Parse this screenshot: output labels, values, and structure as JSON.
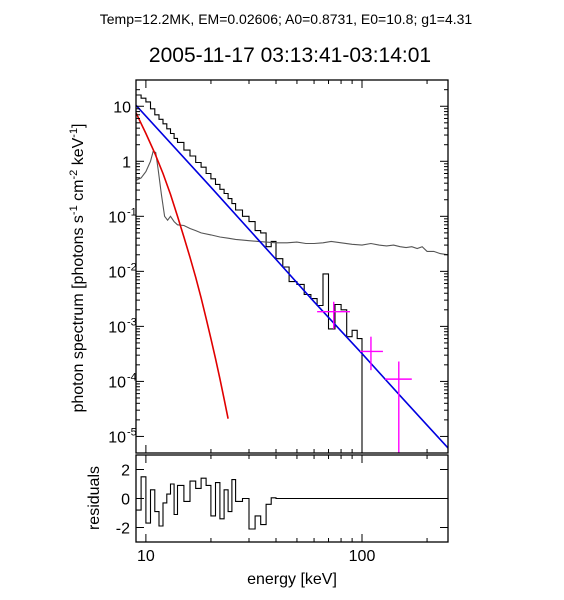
{
  "figure": {
    "header": "Temp=12.2MK, EM=0.02606; A0=0.8731, E0=10.8; g1=4.31",
    "title": "2005-11-17 03:13:41-03:14:01",
    "xlabel": "energy [keV]",
    "ylabel_main": "photon spectrum [photons s",
    "ylabel_sup1": "-1",
    "ylabel_mid1": " cm",
    "ylabel_sup2": "-2",
    "ylabel_mid2": " keV",
    "ylabel_sup3": "-1",
    "ylabel_end": "]",
    "residuals_label": "residuals"
  },
  "colors": {
    "data_histogram": "#000000",
    "background": "#555555",
    "thermal": "#e00000",
    "power_law": "#0000e0",
    "high_energy_points": "#ff00ff"
  },
  "chart_data": [
    {
      "type": "line",
      "title": "2005-11-17 03:13:41-03:14:01",
      "xlabel": "energy [keV]",
      "ylabel": "photon spectrum [photons s-1 cm-2 keV-1]",
      "xscale": "log",
      "yscale": "log",
      "xlim": [
        9,
        250
      ],
      "ylim": [
        5e-06,
        30
      ],
      "x_ticks": [
        10,
        100
      ],
      "y_ticks": [
        {
          "value": 1e-05,
          "base": "10",
          "exp": "-5"
        },
        {
          "value": 0.0001,
          "base": "10",
          "exp": "-4"
        },
        {
          "value": 0.001,
          "base": "10",
          "exp": "-3"
        },
        {
          "value": 0.01,
          "base": "10",
          "exp": "-2"
        },
        {
          "value": 0.1,
          "base": "10",
          "exp": "-1"
        },
        {
          "value": 1,
          "base": "1",
          "exp": ""
        },
        {
          "value": 10,
          "base": "10",
          "exp": ""
        }
      ],
      "series": [
        {
          "role": "data_histogram",
          "style": "step",
          "edges": [
            9,
            9.5,
            10,
            10.5,
            11,
            11.5,
            12,
            12.5,
            13,
            13.5,
            14,
            15,
            16,
            17,
            18,
            19,
            20,
            21,
            22,
            23,
            24,
            25,
            26,
            28,
            30,
            32,
            34,
            36,
            38,
            40,
            43,
            46,
            50,
            54,
            58,
            62,
            66,
            70,
            75,
            80,
            85,
            90,
            95,
            100
          ],
          "values": [
            16,
            14,
            12,
            9,
            7,
            5.8,
            4.8,
            3.9,
            3.2,
            2.6,
            2.2,
            1.6,
            1.25,
            0.95,
            0.78,
            0.6,
            0.48,
            0.38,
            0.31,
            0.26,
            0.21,
            0.17,
            0.13,
            0.1,
            0.08,
            0.055,
            0.05,
            0.028,
            0.035,
            0.017,
            0.012,
            0.0065,
            0.0058,
            0.0038,
            0.0032,
            0.0024,
            0.009,
            0.0009,
            0.0025,
            0.002,
            0.00065,
            0.00085,
            0.0006
          ],
          "drop_to": 5e-06
        },
        {
          "role": "background",
          "x": [
            9,
            9.5,
            10,
            10.5,
            10.8,
            11.1,
            11.4,
            11.8,
            12.2,
            12.6,
            13,
            13.5,
            14,
            15,
            16,
            17,
            18,
            20,
            22,
            24,
            26,
            28,
            30,
            33,
            36,
            40,
            45,
            50,
            55,
            60,
            66,
            72,
            80,
            90,
            100,
            110,
            120,
            130,
            140,
            150,
            160,
            170,
            180,
            190,
            200,
            215,
            230,
            250
          ],
          "y": [
            0.45,
            0.5,
            0.65,
            1.0,
            1.5,
            1.45,
            0.7,
            0.25,
            0.1,
            0.085,
            0.1,
            0.08,
            0.07,
            0.068,
            0.06,
            0.055,
            0.05,
            0.046,
            0.042,
            0.04,
            0.038,
            0.037,
            0.036,
            0.035,
            0.034,
            0.033,
            0.033,
            0.034,
            0.032,
            0.032,
            0.033,
            0.035,
            0.033,
            0.031,
            0.03,
            0.032,
            0.03,
            0.029,
            0.03,
            0.028,
            0.027,
            0.028,
            0.026,
            0.028,
            0.023,
            0.023,
            0.021,
            0.02
          ]
        },
        {
          "role": "thermal",
          "x": [
            9,
            10,
            11,
            12,
            13,
            14,
            15,
            16,
            17,
            18,
            19,
            20,
            21,
            22,
            23,
            24
          ],
          "y": [
            7.6,
            3.2,
            1.4,
            0.6,
            0.25,
            0.1,
            0.042,
            0.018,
            0.0078,
            0.0033,
            0.0014,
            0.0006,
            0.00026,
            0.000112,
            4.8e-05,
            2.1e-05
          ]
        },
        {
          "role": "power_law",
          "x": [
            9,
            20,
            40,
            60,
            80,
            100,
            150,
            200,
            250
          ],
          "y": [
            10.4,
            0.338,
            0.0165,
            0.0028,
            0.00082,
            0.00032,
            5.5e-05,
            1.6e-05,
            6.2e-06
          ]
        }
      ],
      "error_points": [
        {
          "x": 74,
          "y": 0.00185,
          "x_lo": 62,
          "x_hi": 88,
          "y_lo": 0.0009,
          "y_hi": 0.0028
        },
        {
          "x": 110,
          "y": 0.00035,
          "x_lo": 98,
          "x_hi": 125,
          "y_lo": 0.00016,
          "y_hi": 0.00065
        },
        {
          "x": 148,
          "y": 0.00011,
          "x_lo": 128,
          "x_hi": 170,
          "y_lo": 5e-06,
          "y_hi": 0.00023
        }
      ]
    },
    {
      "type": "line",
      "title": "",
      "ylabel": "residuals",
      "xscale": "log",
      "xlim": [
        9,
        250
      ],
      "ylim": [
        -3,
        3
      ],
      "y_ticks": [
        -2,
        0,
        2
      ],
      "series": [
        {
          "role": "residuals",
          "style": "step",
          "edges": [
            9,
            9.5,
            10,
            10.5,
            11,
            11.5,
            12,
            12.5,
            13,
            13.5,
            14,
            15,
            16,
            17,
            18,
            19,
            20,
            21,
            22,
            23,
            24,
            25,
            26,
            28,
            30,
            32,
            34,
            36,
            38,
            40,
            250
          ],
          "values": [
            -0.8,
            1.5,
            -1.7,
            0.6,
            -0.9,
            -1.9,
            -0.3,
            0.3,
            1.0,
            -1.1,
            0.9,
            -0.2,
            1.2,
            0.7,
            1.4,
            0.9,
            -1.2,
            1.1,
            -1.4,
            0.6,
            -0.9,
            1.3,
            -0.2,
            0.0,
            -2.1,
            -1.2,
            -1.8,
            -0.4,
            0.05,
            0.0
          ]
        }
      ]
    }
  ]
}
